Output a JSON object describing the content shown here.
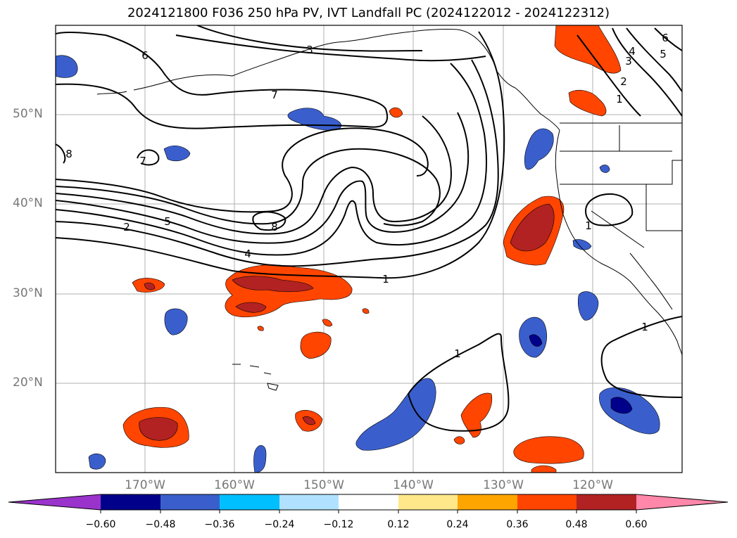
{
  "title": "2024121800 F036 250 hPa PV, IVT Landfall PC (2024122012 - 2024122312)",
  "lat_labels": [
    "50°N",
    "40°N",
    "30°N",
    "20°N"
  ],
  "lon_labels": [
    "170°W",
    "160°W",
    "150°W",
    "140°W",
    "130°W",
    "120°W"
  ],
  "contour_labels": [
    "6",
    "3",
    "7",
    "8",
    "7",
    "2",
    "5",
    "8",
    "4",
    "1",
    "1",
    "1",
    "1",
    "1",
    "2",
    "3",
    "4",
    "5",
    "6"
  ],
  "colorbar": {
    "ticks": [
      "−0.60",
      "−0.48",
      "−0.36",
      "−0.24",
      "−0.12",
      "0.12",
      "0.24",
      "0.36",
      "0.48",
      "0.60"
    ],
    "colors": [
      "#9a33cc",
      "#00008b",
      "#3a5fcd",
      "#00bfff",
      "#b0e2ff",
      "#ffffff",
      "#ffe88a",
      "#ffa500",
      "#ff4500",
      "#b22222",
      "#ff88aa"
    ]
  }
}
